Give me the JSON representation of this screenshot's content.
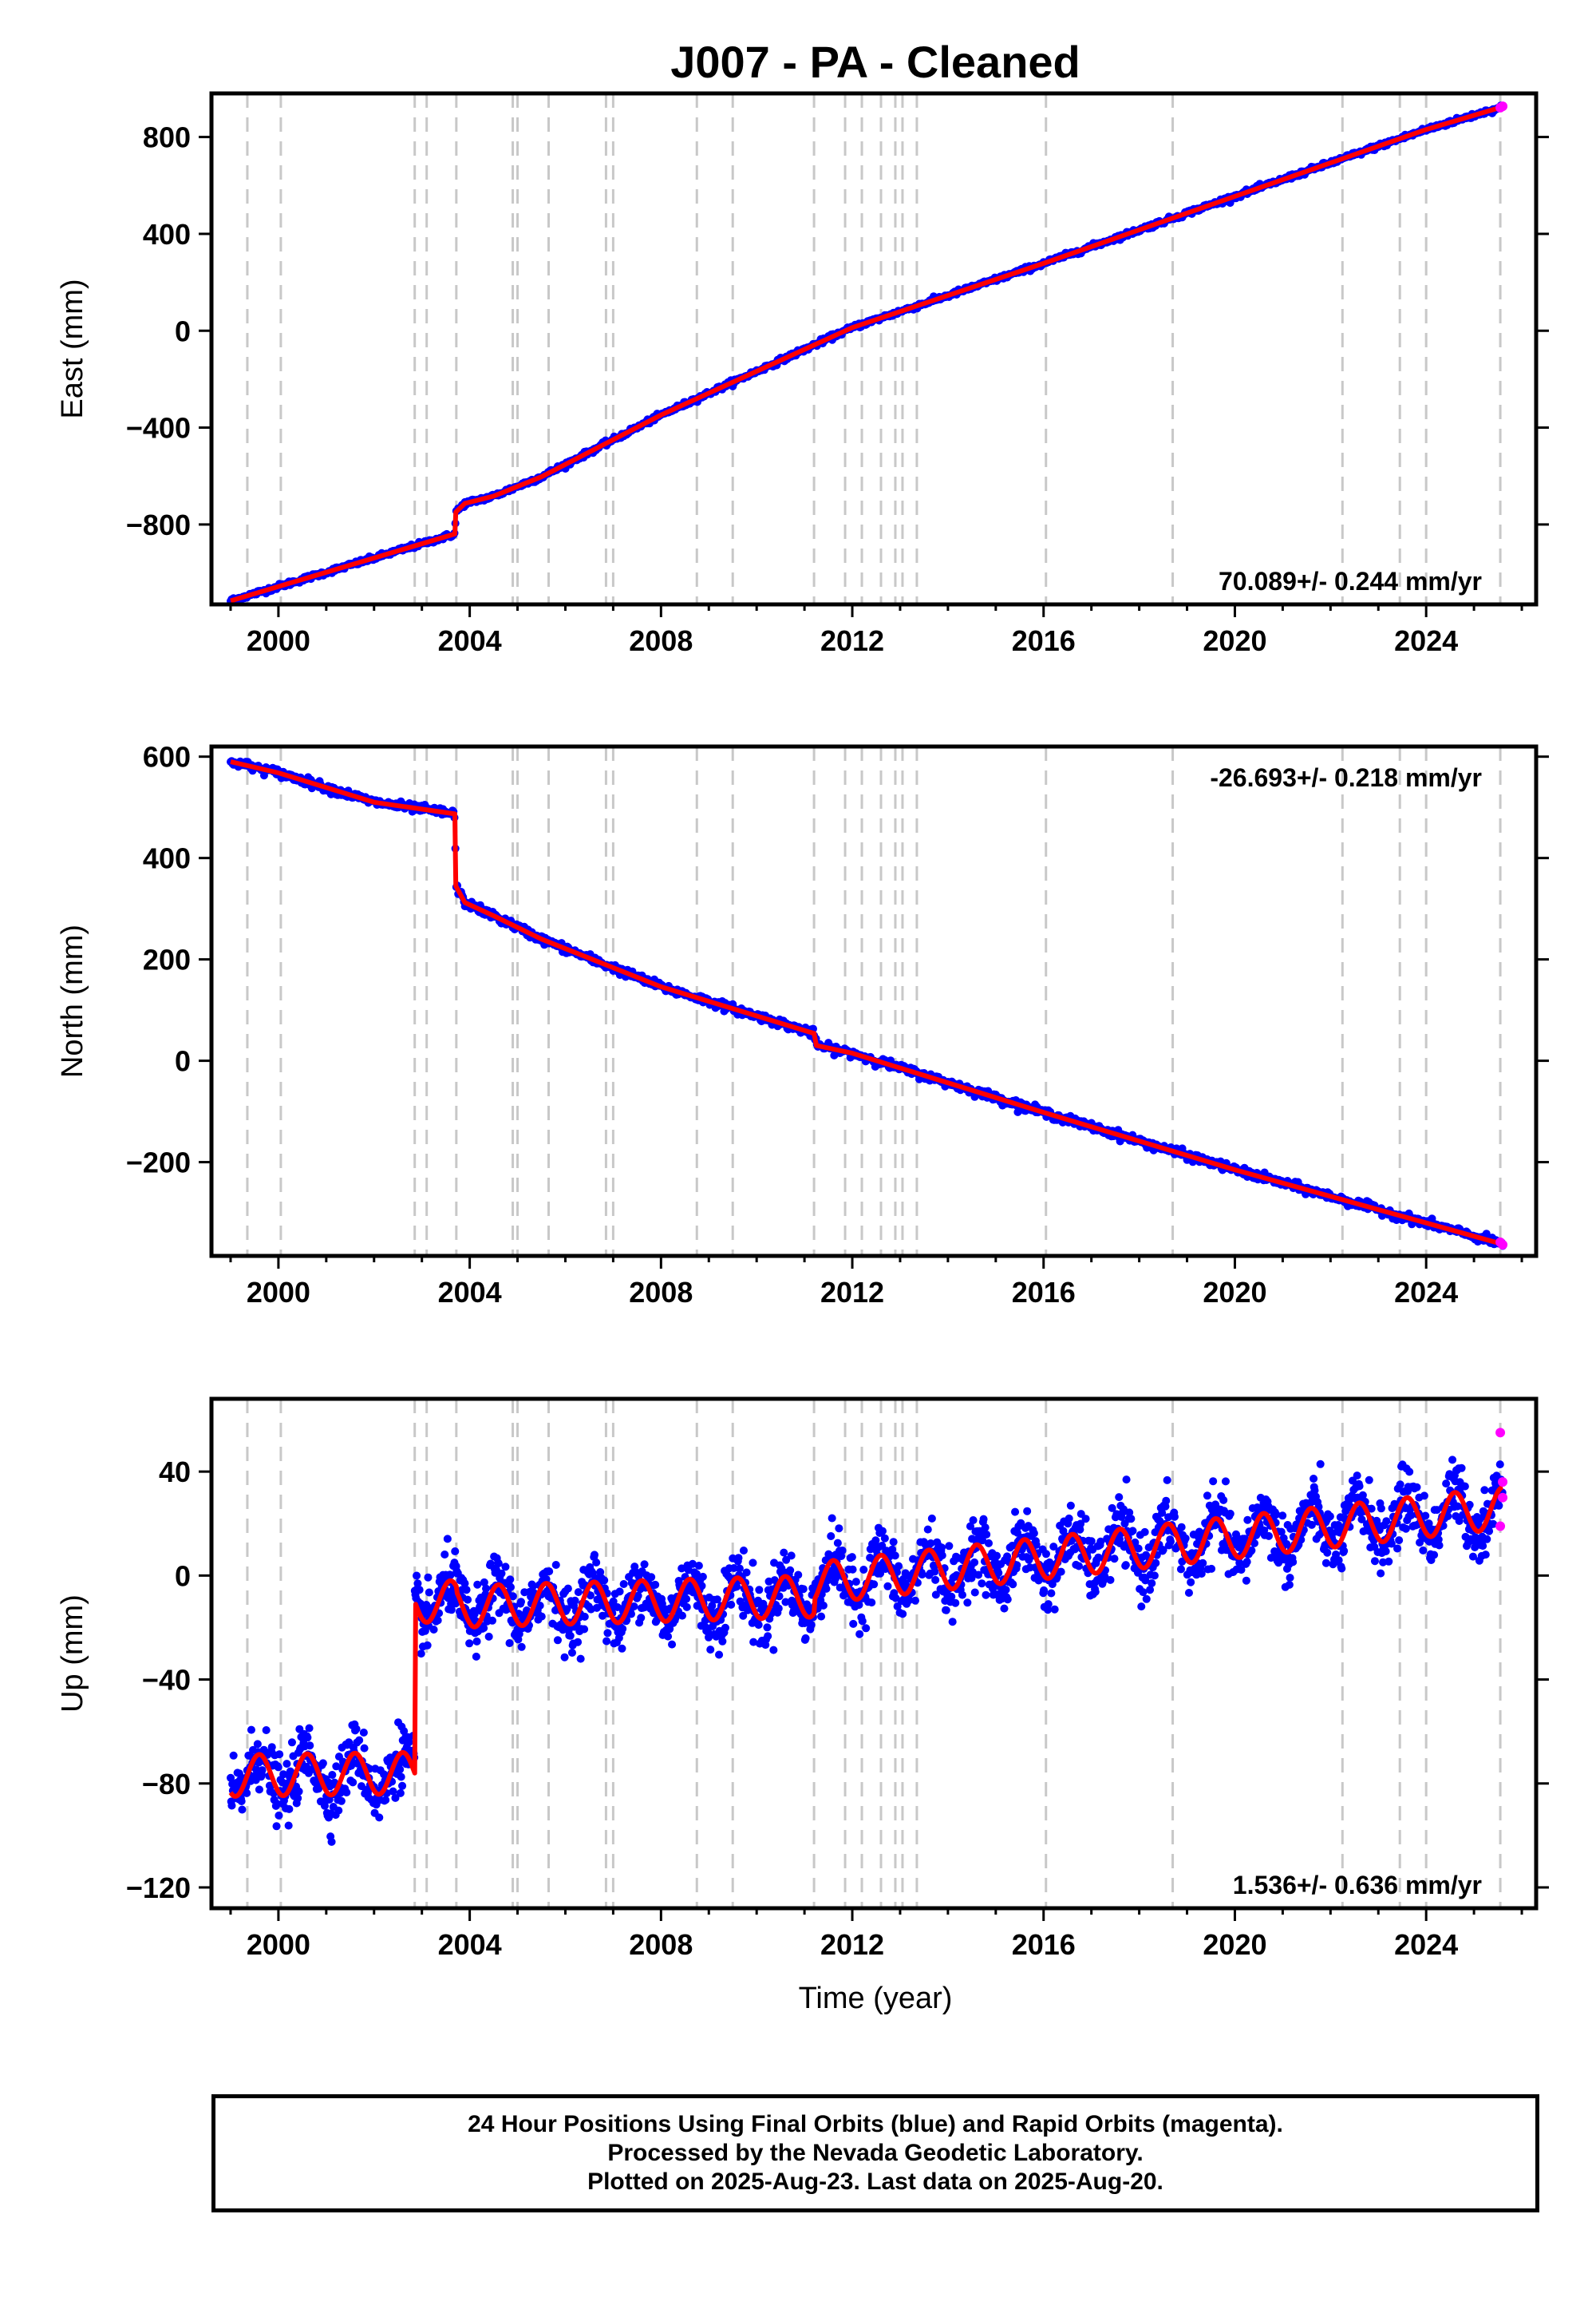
{
  "title": "J007  - PA - Cleaned",
  "xlabel": "Time (year)",
  "x_ticks": [
    "2000",
    "2004",
    "2008",
    "2012",
    "2016",
    "2020",
    "2024"
  ],
  "caption": [
    "24 Hour Positions Using Final Orbits (blue) and Rapid Orbits (magenta).",
    "Processed by the Nevada Geodetic Laboratory.",
    "Plotted on 2025-Aug-23. Last data on 2025-Aug-20."
  ],
  "colors": {
    "final_orbits": "#0000ff",
    "rapid_orbits": "#ff00ff",
    "model": "#ff0000",
    "event_lines": "#c8c8c8"
  },
  "chart_data": [
    {
      "type": "scatter",
      "ylabel": "East (mm)",
      "y_ticks": [
        "800",
        "400",
        "0",
        "-400",
        "-800"
      ],
      "ylim": [
        -1130,
        980
      ],
      "xlim": [
        1998.6,
        2026.3
      ],
      "rate_text": "70.089+/- 0.244 mm/yr",
      "rate_position": "bottom-right",
      "event_lines": [
        1999.35,
        2000.05,
        2002.85,
        2003.1,
        2003.72,
        2004.9,
        2005.0,
        2005.65,
        2006.85,
        2007.0,
        2008.75,
        2009.5,
        2011.2,
        2011.85,
        2012.2,
        2012.6,
        2012.9,
        2013.05,
        2013.35,
        2016.05,
        2018.7,
        2022.25,
        2023.45,
        2024.0,
        2025.55
      ],
      "model": {
        "series_name": "model",
        "x": [
          1999.0,
          2003.69,
          2003.71,
          2003.9,
          2004.5,
          2005.5,
          2008.0,
          2012.0,
          2016.0,
          2020.0,
          2024.0,
          2025.6
        ],
        "y": [
          -1115,
          -839,
          -749,
          -713,
          -683,
          -603,
          -348,
          13,
          278,
          555,
          831,
          925
        ]
      },
      "rapid_points": {
        "x": [
          2025.55,
          2025.6
        ],
        "y": [
          921,
          927
        ]
      }
    },
    {
      "type": "scatter",
      "ylabel": "North (mm)",
      "y_ticks": [
        "600",
        "400",
        "200",
        "0",
        "-200"
      ],
      "ylim": [
        -385,
        620
      ],
      "xlim": [
        1998.6,
        2026.3
      ],
      "rate_text": "-26.693+/- 0.218 mm/yr",
      "rate_position": "top-right",
      "event_lines": [
        1999.35,
        2000.05,
        2002.85,
        2003.1,
        2003.72,
        2004.9,
        2005.0,
        2005.65,
        2006.85,
        2007.0,
        2008.75,
        2009.5,
        2011.2,
        2011.85,
        2012.2,
        2012.6,
        2012.9,
        2013.05,
        2013.35,
        2016.05,
        2018.7,
        2022.25,
        2023.45,
        2024.0,
        2025.55
      ],
      "model": {
        "series_name": "model",
        "x": [
          1999.0,
          2000.0,
          2002.0,
          2003.69,
          2003.71,
          2003.9,
          2004.5,
          2005.5,
          2008.0,
          2011.2,
          2011.25,
          2012.0,
          2016.0,
          2020.0,
          2024.0,
          2025.6
        ],
        "y": [
          590,
          568,
          510,
          487,
          345,
          312,
          286,
          240,
          146,
          54,
          30,
          15,
          -102,
          -215,
          -320,
          -362
        ]
      },
      "rapid_points": {
        "x": [
          2025.55,
          2025.6
        ],
        "y": [
          -358,
          -363
        ]
      }
    },
    {
      "type": "scatter",
      "ylabel": "Up (mm)",
      "xlabel": "Time (year)",
      "y_ticks": [
        "40",
        "0",
        "-40",
        "-80",
        "-120"
      ],
      "ylim": [
        -128,
        68
      ],
      "xlim": [
        1998.6,
        2026.3
      ],
      "rate_text": "1.536+/- 0.636 mm/yr",
      "rate_position": "bottom-right",
      "event_lines": [
        1999.35,
        2000.05,
        2002.85,
        2003.1,
        2003.72,
        2004.9,
        2005.0,
        2005.65,
        2006.85,
        2007.0,
        2008.75,
        2009.5,
        2011.2,
        2011.85,
        2012.2,
        2012.6,
        2012.9,
        2013.05,
        2013.35,
        2016.05,
        2018.7,
        2022.25,
        2023.45,
        2024.0,
        2025.55
      ],
      "model": {
        "series_name": "model",
        "offset_segments": [
          {
            "x_start": 1999.0,
            "x_end": 2002.85,
            "y_start": -77,
            "y_end": -76
          },
          {
            "x_start": 2002.85,
            "x_end": 2003.72,
            "y_start": -10,
            "y_end": -10
          },
          {
            "x_start": 2003.72,
            "x_end": 2011.2,
            "y_start": -12,
            "y_end": -8
          },
          {
            "x_start": 2011.2,
            "x_end": 2025.6,
            "y_start": -3,
            "y_end": 26
          }
        ],
        "seasonal_amplitude_mm": 8,
        "seasonal_peak_month_fraction": 0.6
      },
      "rapid_points": {
        "x": [
          2025.55,
          2025.55,
          2025.6,
          2025.6
        ],
        "y": [
          55,
          19,
          36,
          30
        ]
      }
    }
  ]
}
